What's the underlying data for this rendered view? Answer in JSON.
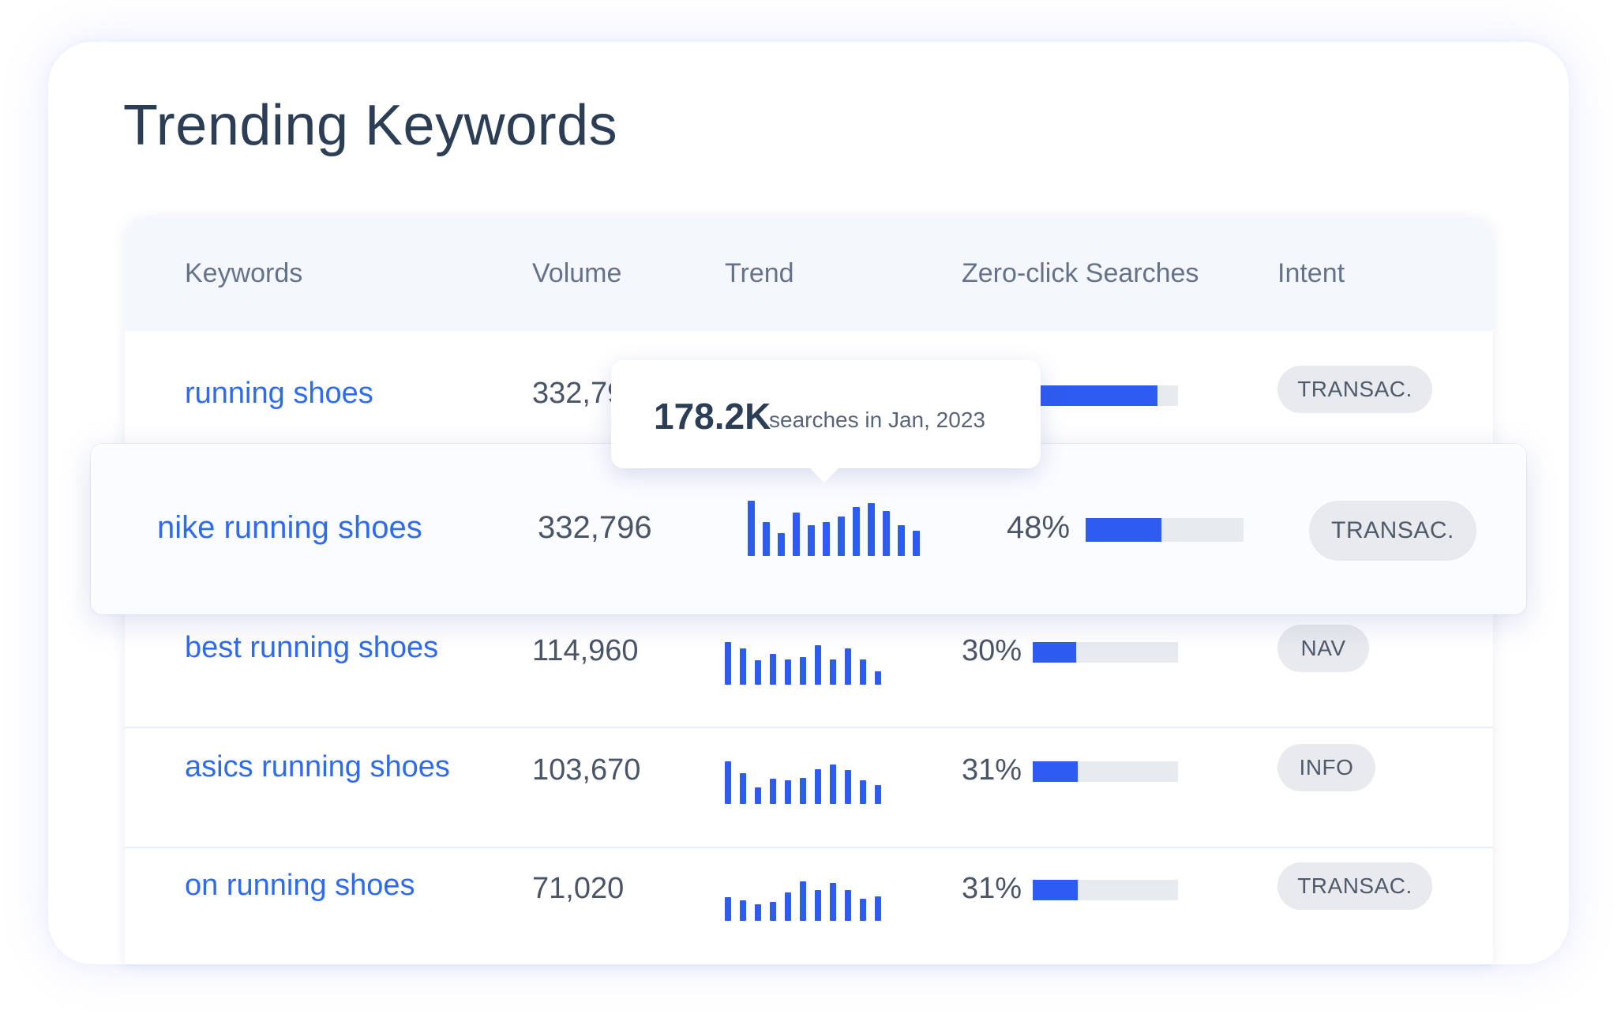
{
  "title": "Trending Keywords",
  "headers": {
    "keywords": "Keywords",
    "volume": "Volume",
    "trend": "Trend",
    "zero_click": "Zero-click Searches",
    "intent": "Intent"
  },
  "colors": {
    "accent": "#2f5cf0",
    "link": "#2f6bf0",
    "pill_bg": "#e8eaee"
  },
  "tooltip": {
    "value": "178.2K",
    "text": "searches in Jan, 2023"
  },
  "rows": [
    {
      "keyword": "running shoes",
      "volume": "332,796",
      "zero_click": "",
      "zero_click_fraction": 0.86,
      "intent": "TRANSAC.",
      "trend": []
    },
    {
      "keyword": "nike running shoes",
      "volume": "332,796",
      "zero_click": "48%",
      "zero_click_fraction": 0.48,
      "intent": "TRANSAC.",
      "trend": [
        1.0,
        0.62,
        0.42,
        0.78,
        0.55,
        0.62,
        0.72,
        0.88,
        0.96,
        0.82,
        0.55,
        0.45
      ]
    },
    {
      "keyword": "best running shoes",
      "volume": "114,960",
      "zero_click": "30%",
      "zero_click_fraction": 0.3,
      "intent": "NAV",
      "trend": [
        1.0,
        0.85,
        0.58,
        0.72,
        0.6,
        0.65,
        0.92,
        0.6,
        0.85,
        0.6,
        0.32
      ]
    },
    {
      "keyword": "asics running shoes",
      "volume": "103,670",
      "zero_click": "31%",
      "zero_click_fraction": 0.31,
      "intent": "INFO",
      "trend": [
        1.0,
        0.72,
        0.38,
        0.6,
        0.56,
        0.62,
        0.82,
        0.92,
        0.8,
        0.55,
        0.45
      ]
    },
    {
      "keyword": "on running shoes",
      "volume": "71,020",
      "zero_click": "31%",
      "zero_click_fraction": 0.31,
      "intent": "TRANSAC.",
      "trend": [
        0.6,
        0.52,
        0.42,
        0.48,
        0.72,
        1.0,
        0.78,
        0.95,
        0.78,
        0.55,
        0.62
      ]
    }
  ]
}
